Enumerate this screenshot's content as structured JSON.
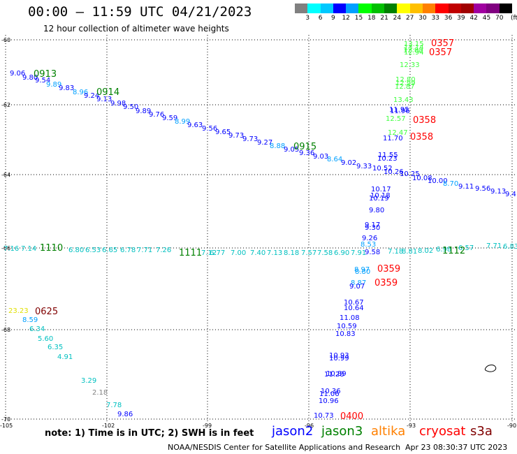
{
  "header": {
    "title": "00:00 – 11:59 UTC 04/21/2023",
    "subtitle": "12 hour collection of altimeter wave heights"
  },
  "scale": {
    "unit": "(ft)",
    "colors": [
      "#808080",
      "#00ffff",
      "#00c8ff",
      "#0000ff",
      "#00a0ff",
      "#00ff00",
      "#00c000",
      "#008000",
      "#ffff00",
      "#ffc000",
      "#ff8000",
      "#ff0000",
      "#c00000",
      "#a00000",
      "#a000a0",
      "#800080",
      "#000000"
    ],
    "labels": [
      "3",
      "6",
      "9",
      "12",
      "15",
      "18",
      "21",
      "24",
      "27",
      "30",
      "33",
      "36",
      "39",
      "42",
      "45",
      "70"
    ]
  },
  "axes": {
    "y_ticks": [
      "-60",
      "-62",
      "-64",
      "-66",
      "-68",
      "-70"
    ],
    "x_ticks": [
      "-105",
      "-102",
      "-99",
      "-96",
      "-93",
      "-90"
    ]
  },
  "tracks": {
    "colors": {
      "jason2": "#0000ff",
      "jason3": "#008000",
      "altika": "#ff8000",
      "cryosat": "#ff0000",
      "s3a": "#800000",
      "light_green": "#40ff40",
      "cyan": "#00c0c0",
      "yellow": "#e0e000",
      "gray": "#808080",
      "mid_blue": "#00a0ff"
    },
    "time_labels": [
      {
        "text": "0913",
        "color": "jason3"
      },
      {
        "text": "0914",
        "color": "jason3"
      },
      {
        "text": "0915",
        "color": "jason3"
      },
      {
        "text": "1110",
        "color": "jason3"
      },
      {
        "text": "1111",
        "color": "jason3"
      },
      {
        "text": "1112",
        "color": "jason3"
      },
      {
        "text": "0357",
        "color": "cryosat"
      },
      {
        "text": "0357",
        "color": "cryosat"
      },
      {
        "text": "0358",
        "color": "cryosat"
      },
      {
        "text": "0358",
        "color": "cryosat"
      },
      {
        "text": "0359",
        "color": "cryosat"
      },
      {
        "text": "0359",
        "color": "cryosat"
      },
      {
        "text": "0400",
        "color": "cryosat"
      },
      {
        "text": "0625",
        "color": "s3a"
      }
    ],
    "observations": [
      {
        "t": "9.06",
        "c": "jason2"
      },
      {
        "t": "9.80",
        "c": "jason2"
      },
      {
        "t": "9.54",
        "c": "jason2"
      },
      {
        "t": "9.89",
        "c": "mid_blue"
      },
      {
        "t": "9.83",
        "c": "jason2"
      },
      {
        "t": "8.96",
        "c": "mid_blue"
      },
      {
        "t": "9.24",
        "c": "jason2"
      },
      {
        "t": "9.13",
        "c": "jason2"
      },
      {
        "t": "9.98",
        "c": "jason2"
      },
      {
        "t": "9.50",
        "c": "jason2"
      },
      {
        "t": "9.89",
        "c": "jason2"
      },
      {
        "t": "9.76",
        "c": "jason2"
      },
      {
        "t": "9.59",
        "c": "jason2"
      },
      {
        "t": "8.99",
        "c": "mid_blue"
      },
      {
        "t": "9.63",
        "c": "jason2"
      },
      {
        "t": "9.56",
        "c": "jason2"
      },
      {
        "t": "9.65",
        "c": "jason2"
      },
      {
        "t": "9.73",
        "c": "jason2"
      },
      {
        "t": "9.73",
        "c": "jason2"
      },
      {
        "t": "9.27",
        "c": "jason2"
      },
      {
        "t": "8.88",
        "c": "mid_blue"
      },
      {
        "t": "9.05",
        "c": "jason2"
      },
      {
        "t": "9.36",
        "c": "jason2"
      },
      {
        "t": "9.03",
        "c": "jason2"
      },
      {
        "t": "8.64",
        "c": "mid_blue"
      },
      {
        "t": "9.02",
        "c": "jason2"
      },
      {
        "t": "9.33",
        "c": "jason2"
      },
      {
        "t": "10.52",
        "c": "jason2"
      },
      {
        "t": "10.26",
        "c": "jason2"
      },
      {
        "t": "10.25",
        "c": "jason2"
      },
      {
        "t": "10.08",
        "c": "jason2"
      },
      {
        "t": "10.00",
        "c": "jason2"
      },
      {
        "t": "8.70",
        "c": "mid_blue"
      },
      {
        "t": "9.11",
        "c": "jason2"
      },
      {
        "t": "9.56",
        "c": "jason2"
      },
      {
        "t": "9.13",
        "c": "jason2"
      },
      {
        "t": "9.4",
        "c": "jason2"
      },
      {
        "t": "11.55",
        "c": "jason2"
      },
      {
        "t": "10.23",
        "c": "jason2"
      },
      {
        "t": "11.95",
        "c": "jason2"
      },
      {
        "t": "11.96",
        "c": "jason2"
      },
      {
        "t": "11.70",
        "c": "jason2"
      },
      {
        "t": "10.17",
        "c": "jason2"
      },
      {
        "t": "10.18",
        "c": "jason2"
      },
      {
        "t": "10.19",
        "c": "jason2"
      },
      {
        "t": "9.80",
        "c": "jason2"
      },
      {
        "t": "9.17",
        "c": "jason2"
      },
      {
        "t": "9.30",
        "c": "jason2"
      },
      {
        "t": "9.26",
        "c": "jason2"
      },
      {
        "t": "8.53",
        "c": "mid_blue"
      },
      {
        "t": "9.58",
        "c": "jason2"
      },
      {
        "t": "8.97",
        "c": "mid_blue"
      },
      {
        "t": "8.80",
        "c": "mid_blue"
      },
      {
        "t": "8.87",
        "c": "mid_blue"
      },
      {
        "t": "9.07",
        "c": "jason2"
      },
      {
        "t": "10.67",
        "c": "jason2"
      },
      {
        "t": "10.64",
        "c": "jason2"
      },
      {
        "t": "11.08",
        "c": "jason2"
      },
      {
        "t": "10.59",
        "c": "jason2"
      },
      {
        "t": "10.83",
        "c": "jason2"
      },
      {
        "t": "10.93",
        "c": "jason2"
      },
      {
        "t": "10.99",
        "c": "jason2"
      },
      {
        "t": "10.89",
        "c": "jason2"
      },
      {
        "t": "11.28",
        "c": "jason2"
      },
      {
        "t": "10.36",
        "c": "jason2"
      },
      {
        "t": "11.06",
        "c": "jason2"
      },
      {
        "t": "10.96",
        "c": "jason2"
      },
      {
        "t": "10.73",
        "c": "jason2"
      },
      {
        "t": "13.15",
        "c": "light_green"
      },
      {
        "t": "13.14",
        "c": "light_green"
      },
      {
        "t": "12.88",
        "c": "light_green"
      },
      {
        "t": "12.94",
        "c": "light_green"
      },
      {
        "t": "12.33",
        "c": "light_green"
      },
      {
        "t": "12.80",
        "c": "light_green"
      },
      {
        "t": "12.99",
        "c": "light_green"
      },
      {
        "t": "12.87",
        "c": "light_green"
      },
      {
        "t": "13.43",
        "c": "light_green"
      },
      {
        "t": "12.57",
        "c": "light_green"
      },
      {
        "t": "12.47",
        "c": "light_green"
      },
      {
        "t": "7.16",
        "c": "cyan"
      },
      {
        "t": "7.14",
        "c": "cyan"
      },
      {
        "t": "6.80",
        "c": "cyan"
      },
      {
        "t": "6.53",
        "c": "cyan"
      },
      {
        "t": "6.65",
        "c": "cyan"
      },
      {
        "t": "6.78",
        "c": "cyan"
      },
      {
        "t": "7.71",
        "c": "cyan"
      },
      {
        "t": "7.26",
        "c": "cyan"
      },
      {
        "t": "7.12",
        "c": "cyan"
      },
      {
        "t": "6.77",
        "c": "cyan"
      },
      {
        "t": "7.00",
        "c": "cyan"
      },
      {
        "t": "7.40",
        "c": "cyan"
      },
      {
        "t": "7.13",
        "c": "cyan"
      },
      {
        "t": "8.18",
        "c": "cyan"
      },
      {
        "t": "7.57",
        "c": "cyan"
      },
      {
        "t": "7.58",
        "c": "cyan"
      },
      {
        "t": "6.90",
        "c": "cyan"
      },
      {
        "t": "7.91",
        "c": "cyan"
      },
      {
        "t": "7.18",
        "c": "cyan"
      },
      {
        "t": "8.81",
        "c": "cyan"
      },
      {
        "t": "8.02",
        "c": "cyan"
      },
      {
        "t": "6.98",
        "c": "cyan"
      },
      {
        "t": "6.57",
        "c": "cyan"
      },
      {
        "t": "7.71",
        "c": "cyan"
      },
      {
        "t": "6.83",
        "c": "cyan"
      },
      {
        "t": "23.23",
        "c": "yellow"
      },
      {
        "t": "8.59",
        "c": "mid_blue"
      },
      {
        "t": "6.34",
        "c": "cyan"
      },
      {
        "t": "5.60",
        "c": "cyan"
      },
      {
        "t": "6.35",
        "c": "cyan"
      },
      {
        "t": "4.91",
        "c": "cyan"
      },
      {
        "t": "3.29",
        "c": "cyan"
      },
      {
        "t": "2.18",
        "c": "gray"
      },
      {
        "t": "7.78",
        "c": "cyan"
      },
      {
        "t": "9.86",
        "c": "jason2"
      }
    ]
  },
  "notes": {
    "note": "note: 1) Time is in UTC; 2) SWH is in feet"
  },
  "legend": {
    "jason2": "jason2",
    "jason3": "jason3",
    "altika": "altika",
    "cryosat": "cryosat",
    "s3a": "s3a"
  },
  "footer": {
    "credit": "NOAA/NESDIS Center for Satellite Applications and Research",
    "timestamp": "Apr 23 08:30:37 UTC 2023"
  }
}
